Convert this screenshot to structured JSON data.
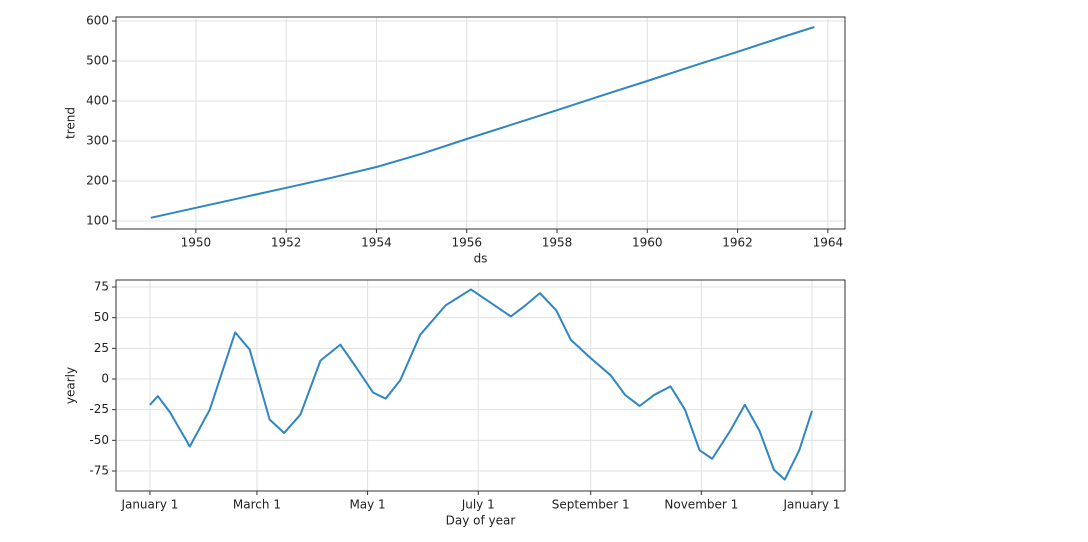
{
  "chart_data": [
    {
      "type": "line",
      "xlabel": "ds",
      "ylabel": "trend",
      "color": "#2f86c1",
      "grid": true,
      "x": [
        1949.0,
        1950.0,
        1951.0,
        1952.0,
        1953.0,
        1954.0,
        1955.0,
        1956.0,
        1957.0,
        1958.0,
        1959.0,
        1960.0,
        1961.0,
        1962.0,
        1963.0,
        1963.7
      ],
      "values": [
        108,
        133,
        158,
        183,
        208,
        235,
        268,
        305,
        341,
        377,
        414,
        450,
        487,
        523,
        560,
        585
      ],
      "xlim": [
        1948.23,
        1964.38
      ],
      "ylim": [
        80,
        610
      ],
      "xticks": [
        1950,
        1952,
        1954,
        1956,
        1958,
        1960,
        1962,
        1964
      ],
      "yticks": [
        100,
        200,
        300,
        400,
        500,
        600
      ]
    },
    {
      "type": "line",
      "xlabel": "Day of year",
      "ylabel": "yearly",
      "color": "#2f86c1",
      "grid": true,
      "x": [
        0,
        4.4,
        11,
        22,
        33,
        47,
        55,
        66,
        74,
        83,
        94,
        105,
        113,
        123,
        130,
        138,
        149,
        163,
        177,
        188,
        199,
        207,
        215,
        224,
        232,
        243,
        254,
        262,
        270,
        278,
        287,
        295,
        303,
        310,
        320,
        328,
        336,
        344,
        350,
        358,
        365
      ],
      "values": [
        -21,
        -14,
        -27,
        -55,
        -25,
        38,
        24,
        -33,
        -44,
        -29,
        15,
        28,
        11,
        -11,
        -16,
        -1,
        36,
        60,
        73,
        62,
        51,
        60,
        70,
        56,
        32,
        17,
        3,
        -13,
        -22,
        -13,
        -6,
        -25,
        -58,
        -65,
        -42,
        -21,
        -42,
        -74,
        -82,
        -58,
        -26
      ],
      "xlim": [
        -18.7,
        383.2
      ],
      "ylim": [
        -91.3,
        80.7
      ],
      "xticks": [
        {
          "value": 0,
          "label": "January 1"
        },
        {
          "value": 59,
          "label": "March 1"
        },
        {
          "value": 120,
          "label": "May 1"
        },
        {
          "value": 181,
          "label": "July 1"
        },
        {
          "value": 243,
          "label": "September 1"
        },
        {
          "value": 304,
          "label": "November 1"
        },
        {
          "value": 365,
          "label": "January 1"
        }
      ],
      "yticks": [
        -75,
        -50,
        -25,
        0,
        25,
        50,
        75
      ]
    }
  ]
}
